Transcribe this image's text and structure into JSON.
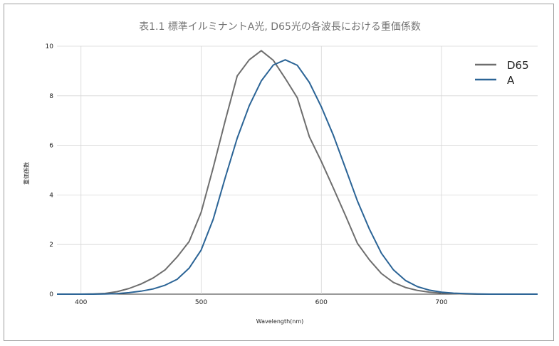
{
  "chart_data": {
    "type": "line",
    "title": "表1.1 標準イルミナントA光, D65光の各波長における重価係数",
    "xlabel": "Wavelength(nm)",
    "ylabel": "重価係数",
    "xlim": [
      380,
      780
    ],
    "ylim": [
      0,
      10
    ],
    "x_ticks": [
      "400",
      "500",
      "600",
      "700"
    ],
    "y_ticks": [
      "0",
      "2",
      "4",
      "6",
      "8",
      "10"
    ],
    "grid": true,
    "legend_position": "top-right",
    "x": [
      380,
      390,
      400,
      410,
      420,
      430,
      440,
      450,
      460,
      470,
      480,
      490,
      500,
      510,
      520,
      530,
      540,
      550,
      560,
      570,
      580,
      590,
      600,
      610,
      620,
      630,
      640,
      650,
      660,
      670,
      680,
      690,
      700,
      710,
      720,
      730,
      740,
      750,
      760,
      770,
      780
    ],
    "series": [
      {
        "name": "D65",
        "color": "#6e6e6e",
        "values": [
          0,
          0,
          0,
          0.01,
          0.03,
          0.1,
          0.23,
          0.41,
          0.65,
          0.98,
          1.5,
          2.12,
          3.3,
          5.1,
          7.0,
          8.8,
          9.45,
          9.82,
          9.43,
          8.7,
          7.92,
          6.35,
          5.35,
          4.28,
          3.18,
          2.05,
          1.38,
          0.83,
          0.47,
          0.27,
          0.15,
          0.08,
          0.04,
          0.02,
          0.01,
          0,
          0,
          0,
          0,
          0,
          0
        ]
      },
      {
        "name": "A",
        "color": "#2b6496",
        "values": [
          0,
          0,
          0,
          0,
          0.01,
          0.02,
          0.06,
          0.12,
          0.21,
          0.36,
          0.6,
          1.05,
          1.78,
          3.02,
          4.7,
          6.29,
          7.6,
          8.6,
          9.24,
          9.45,
          9.23,
          8.54,
          7.55,
          6.41,
          5.09,
          3.76,
          2.62,
          1.65,
          0.98,
          0.55,
          0.3,
          0.16,
          0.08,
          0.04,
          0.02,
          0.01,
          0,
          0,
          0,
          0,
          0
        ]
      }
    ]
  }
}
